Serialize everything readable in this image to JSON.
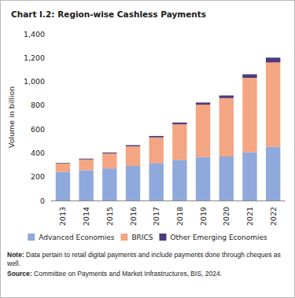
{
  "chart_data": {
    "type": "bar",
    "stacked": true,
    "title": "Chart I.2: Region-wise Cashless Payments",
    "y_label": "Volume in billion",
    "categories": [
      "2013",
      "2014",
      "2015",
      "2016",
      "2017",
      "2018",
      "2019",
      "2020",
      "2021",
      "2022"
    ],
    "series": [
      {
        "name": "Advanced Economies",
        "color": "#8fa9dc",
        "values": [
          240,
          255,
          270,
          290,
          315,
          340,
          365,
          370,
          405,
          450
        ]
      },
      {
        "name": "BRICS",
        "color": "#f4a582",
        "values": [
          70,
          90,
          125,
          165,
          215,
          300,
          440,
          490,
          625,
          710
        ]
      },
      {
        "name": "Other Emerging Economies",
        "color": "#4a3b7c",
        "values": [
          5,
          7,
          8,
          10,
          12,
          15,
          18,
          22,
          30,
          40
        ]
      }
    ],
    "ylim": [
      0,
      1400
    ],
    "yticks": [
      0,
      200,
      400,
      600,
      800,
      1000,
      1200,
      1400
    ],
    "grid": false,
    "legend": "bottom",
    "note": "Note: Data pertain to retail digital payments and include payments done through cheques as well.",
    "source": "Source: Committee on Payments and Market Infrastructures, BIS, 2024."
  }
}
